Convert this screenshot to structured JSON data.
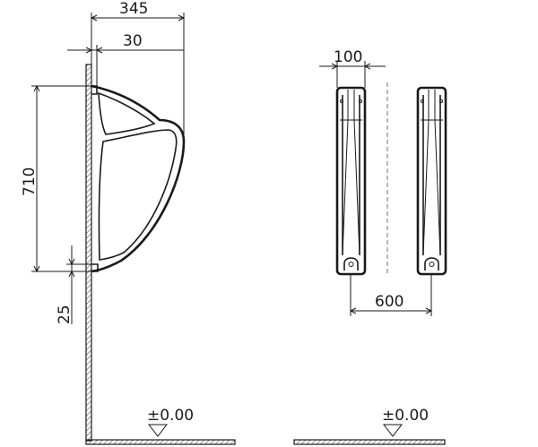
{
  "dimensions": {
    "total_depth": "345",
    "wall_offset": "30",
    "height": "710",
    "bottom_gap": "25",
    "bracket_width": "100",
    "bracket_spacing": "600"
  },
  "levels": {
    "left_floor": "±0.00",
    "right_floor": "±0.00"
  }
}
